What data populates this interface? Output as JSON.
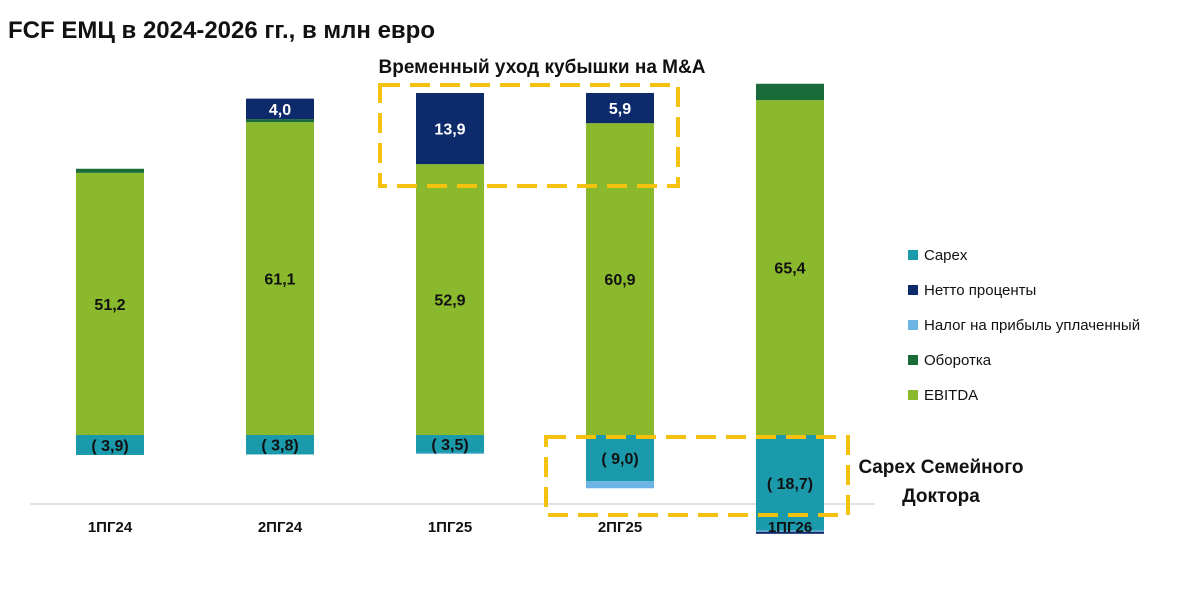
{
  "title": "FCF ЕМЦ в 2024-2026 гг., в млн евро",
  "annotations": {
    "top": "Временный уход кубышки на M&A",
    "bottom_line1": "Capex Семейного",
    "bottom_line2": "Доктора"
  },
  "colors": {
    "capex": "#1b9aab",
    "interest": "#0d2a6b",
    "tax": "#6cb4e4",
    "working_capital": "#1a6b3a",
    "ebitda": "#8ab92d",
    "highlight": "#f4c20d"
  },
  "chart_data": {
    "type": "bar",
    "stacked": true,
    "categories": [
      "1ПГ24",
      "2ПГ24",
      "1ПГ25",
      "2ПГ25",
      "1ПГ26"
    ],
    "legend_position": "right",
    "grid": false,
    "series": [
      {
        "name": "Capex",
        "key": "capex",
        "values": [
          -3.9,
          -3.8,
          -3.5,
          -9.0,
          -18.7
        ],
        "labels": [
          "( 3,9)",
          "( 3,8)",
          "( 3,5)",
          "( 9,0)",
          "( 18,7)"
        ]
      },
      {
        "name": "Нетто проценты",
        "key": "interest",
        "values": [
          0,
          4.0,
          13.9,
          5.9,
          -0.4
        ],
        "labels": [
          "",
          "4,0",
          "13,9",
          "5,9",
          ""
        ]
      },
      {
        "name": "Налог на прибыль уплаченный",
        "key": "tax",
        "values": [
          0,
          0,
          -0.2,
          -1.4,
          -0.2
        ],
        "labels": [
          "",
          "",
          "",
          "",
          ""
        ]
      },
      {
        "name": "Оборотка",
        "key": "working_capital",
        "values": [
          0.8,
          0.6,
          0,
          0,
          3.2
        ],
        "labels": [
          "",
          "",
          "",
          "",
          ""
        ]
      },
      {
        "name": "EBITDA",
        "key": "ebitda",
        "values": [
          51.2,
          61.1,
          52.9,
          60.9,
          65.4
        ],
        "labels": [
          "51,2",
          "61,1",
          "52,9",
          "60,9",
          "65,4"
        ]
      }
    ]
  }
}
